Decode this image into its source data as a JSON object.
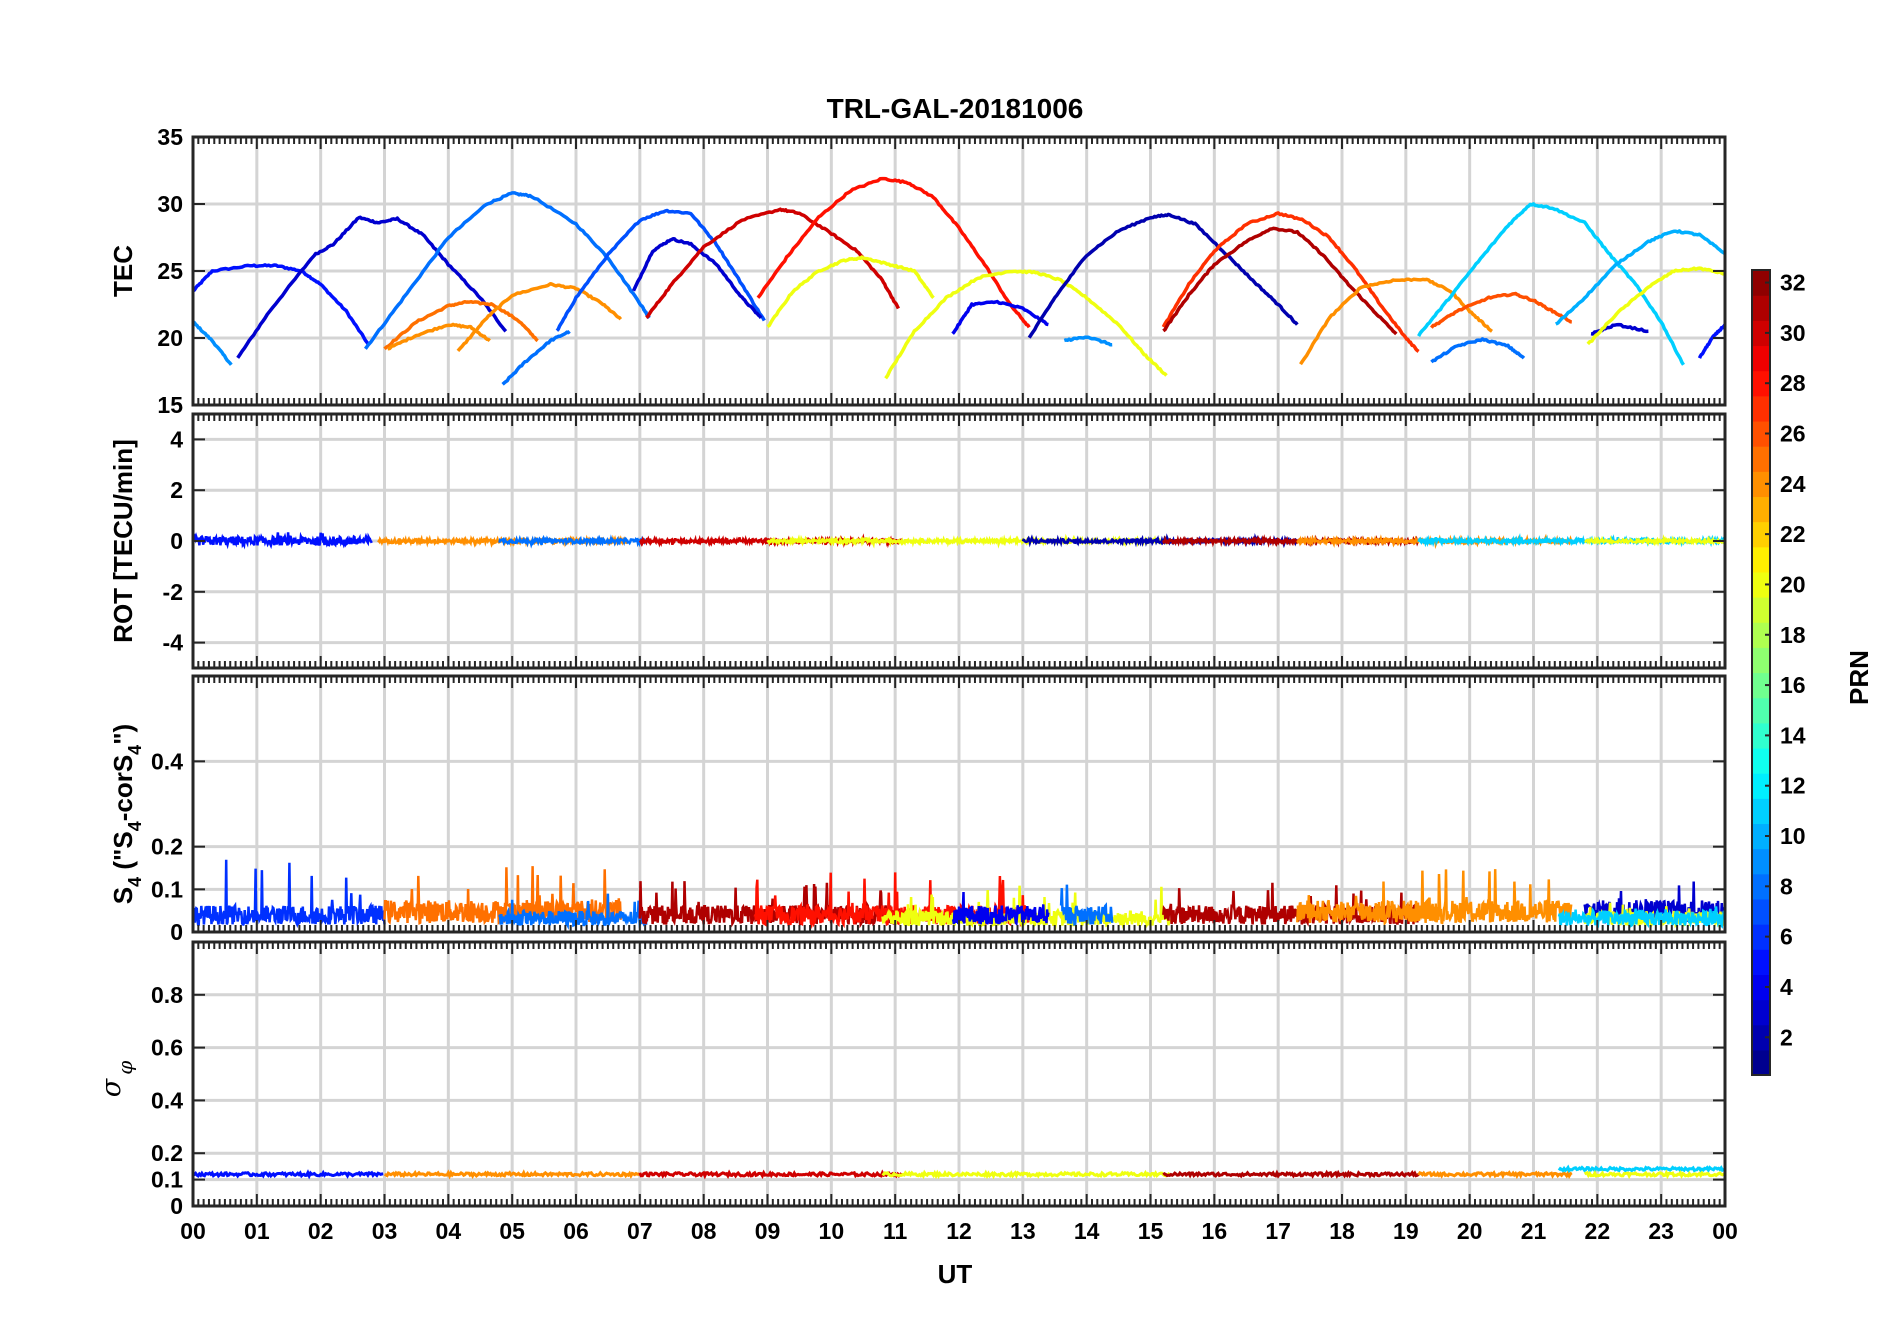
{
  "chart_data": {
    "type": "line",
    "title": "TRL-GAL-20181006",
    "xlabel": "UT",
    "x_ticks": [
      "00",
      "01",
      "02",
      "03",
      "04",
      "05",
      "06",
      "07",
      "08",
      "09",
      "10",
      "11",
      "12",
      "13",
      "14",
      "15",
      "16",
      "17",
      "18",
      "19",
      "20",
      "21",
      "22",
      "23",
      "00"
    ],
    "x_range_hours": [
      0,
      24
    ],
    "grid": true,
    "panels": [
      {
        "id": "tec",
        "ylabel": "TEC",
        "ylim": [
          15,
          35
        ],
        "yticks": [
          15,
          20,
          25,
          30,
          35
        ],
        "series": [
          {
            "prn": 5,
            "x": [
              0.0,
              0.3,
              0.9,
              1.3,
              1.7,
              2.0,
              2.4,
              2.75
            ],
            "y": [
              23.5,
              25.0,
              25.4,
              25.4,
              25.0,
              24.0,
              22.0,
              19.5
            ]
          },
          {
            "prn": 9,
            "x": [
              0.0,
              0.3,
              0.6
            ],
            "y": [
              21.2,
              19.8,
              18.0
            ]
          },
          {
            "prn": 3,
            "x": [
              0.7,
              1.2,
              1.9,
              2.2,
              2.6,
              2.9,
              3.2,
              3.6,
              4.0,
              4.5,
              4.9
            ],
            "y": [
              18.5,
              22.0,
              26.2,
              27.0,
              29.0,
              28.6,
              28.9,
              27.7,
              25.5,
              23.0,
              20.5
            ]
          },
          {
            "prn": 8,
            "x": [
              2.7,
              3.3,
              4.0,
              4.6,
              5.0,
              5.3,
              6.0,
              6.5,
              7.0,
              7.15
            ],
            "y": [
              19.2,
              23.0,
              27.5,
              30.0,
              30.8,
              30.6,
              28.5,
              26.0,
              22.6,
              21.5
            ]
          },
          {
            "prn": 25,
            "x": [
              3.0,
              3.5,
              4.0,
              4.3,
              4.7,
              5.1,
              5.4
            ],
            "y": [
              19.2,
              21.2,
              22.4,
              22.7,
              22.5,
              21.3,
              19.8
            ]
          },
          {
            "prn": 24,
            "x": [
              3.05,
              3.5,
              4.0,
              4.35,
              4.65
            ],
            "y": [
              19.2,
              20.2,
              21.0,
              20.8,
              19.8
            ]
          },
          {
            "prn": 24,
            "x": [
              4.15,
              4.6,
              5.0,
              5.6,
              6.0,
              6.4,
              6.7
            ],
            "y": [
              19.0,
              21.5,
              23.2,
              24.0,
              23.7,
              22.6,
              21.4
            ]
          },
          {
            "prn": 8,
            "x": [
              4.85,
              5.2,
              5.6,
              5.9
            ],
            "y": [
              16.5,
              18.2,
              19.8,
              20.5
            ]
          },
          {
            "prn": 7,
            "x": [
              5.7,
              6.0,
              6.5,
              7.0,
              7.4,
              7.8,
              8.2,
              8.6,
              8.95
            ],
            "y": [
              20.5,
              23.0,
              26.2,
              28.8,
              29.5,
              29.3,
              27.0,
              24.0,
              21.3
            ]
          },
          {
            "prn": 3,
            "x": [
              6.9,
              7.2,
              7.5,
              7.8,
              8.2,
              8.6,
              8.9
            ],
            "y": [
              23.5,
              26.5,
              27.4,
              27.0,
              25.5,
              23.0,
              21.5
            ]
          },
          {
            "prn": 30,
            "x": [
              7.1,
              7.5,
              8.0,
              8.6,
              9.2,
              9.5,
              10.0,
              10.4,
              10.8,
              11.05
            ],
            "y": [
              21.5,
              24.0,
              26.8,
              28.8,
              29.6,
              29.3,
              27.8,
              26.5,
              24.3,
              22.2
            ]
          },
          {
            "prn": 28,
            "x": [
              8.85,
              9.3,
              9.8,
              10.3,
              10.8,
              11.2,
              11.6,
              12.0,
              12.4,
              12.8,
              13.1
            ],
            "y": [
              23.0,
              26.0,
              29.0,
              31.0,
              31.9,
              31.6,
              30.5,
              28.2,
              25.5,
              22.5,
              20.8
            ]
          },
          {
            "prn": 20,
            "x": [
              9.0,
              9.4,
              9.8,
              10.2,
              10.5,
              10.9,
              11.3,
              11.6
            ],
            "y": [
              20.8,
              23.5,
              25.0,
              25.8,
              26.0,
              25.5,
              25.0,
              23.0
            ]
          },
          {
            "prn": 20,
            "x": [
              10.85,
              11.3,
              11.8,
              12.3,
              12.8,
              13.2,
              13.6,
              14.0,
              14.5,
              14.9,
              15.25
            ],
            "y": [
              17.0,
              20.5,
              23.0,
              24.5,
              25.0,
              24.9,
              24.3,
              23.0,
              21.0,
              18.8,
              17.2
            ]
          },
          {
            "prn": 4,
            "x": [
              11.9,
              12.2,
              12.6,
              13.0,
              13.4
            ],
            "y": [
              20.3,
              22.5,
              22.7,
              22.2,
              21.0
            ]
          },
          {
            "prn": 9,
            "x": [
              13.65,
              14.0,
              14.4
            ],
            "y": [
              19.8,
              20.1,
              19.5
            ]
          },
          {
            "prn": 2,
            "x": [
              13.1,
              13.5,
              14.0,
              14.5,
              15.0,
              15.3,
              15.7,
              16.2,
              16.6,
              17.0,
              17.3
            ],
            "y": [
              20.0,
              23.0,
              26.2,
              28.0,
              29.0,
              29.2,
              28.5,
              26.2,
              24.3,
              22.5,
              21.0
            ]
          },
          {
            "prn": 27,
            "x": [
              15.2,
              15.6,
              16.0,
              16.5,
              17.0,
              17.4,
              17.8,
              18.2,
              18.6,
              19.0,
              19.2
            ],
            "y": [
              20.8,
              24.0,
              26.5,
              28.5,
              29.3,
              28.8,
              27.5,
              25.2,
              22.5,
              20.0,
              19.0
            ]
          },
          {
            "prn": 31,
            "x": [
              15.2,
              15.6,
              16.0,
              16.5,
              16.9,
              17.3,
              17.7,
              18.1,
              18.5,
              18.85
            ],
            "y": [
              20.5,
              23.2,
              25.5,
              27.2,
              28.2,
              27.9,
              26.2,
              24.0,
              22.0,
              20.3
            ]
          },
          {
            "prn": 24,
            "x": [
              17.35,
              17.8,
              18.3,
              18.8,
              19.3,
              19.7,
              20.0,
              20.35
            ],
            "y": [
              18.0,
              21.5,
              23.8,
              24.3,
              24.4,
              23.5,
              22.0,
              20.5
            ]
          },
          {
            "prn": 11,
            "x": [
              19.2,
              19.6,
              20.1,
              20.6,
              20.95,
              21.3,
              21.8,
              22.2,
              22.6,
              23.0,
              23.35
            ],
            "y": [
              20.2,
              22.5,
              25.5,
              28.4,
              30.0,
              29.7,
              28.6,
              26.2,
              24.0,
              21.2,
              18.0
            ]
          },
          {
            "prn": 26,
            "x": [
              19.4,
              19.8,
              20.3,
              20.7,
              21.0,
              21.3,
              21.6
            ],
            "y": [
              20.8,
              22.0,
              23.0,
              23.3,
              22.8,
              22.0,
              21.2
            ]
          },
          {
            "prn": 8,
            "x": [
              19.4,
              19.8,
              20.2,
              20.6,
              20.85
            ],
            "y": [
              18.2,
              19.4,
              19.9,
              19.4,
              18.5
            ]
          },
          {
            "prn": 10,
            "x": [
              21.35,
              21.8,
              22.3,
              22.8,
              23.2,
              23.6,
              24.0
            ],
            "y": [
              21.0,
              23.0,
              25.5,
              27.2,
              28.0,
              27.7,
              26.3
            ]
          },
          {
            "prn": 3,
            "x": [
              21.9,
              22.3,
              22.8
            ],
            "y": [
              20.3,
              21.0,
              20.5
            ]
          },
          {
            "prn": 20,
            "x": [
              21.85,
              22.3,
              22.8,
              23.2,
              23.6,
              24.0
            ],
            "y": [
              19.5,
              21.8,
              23.8,
              25.0,
              25.2,
              24.8
            ]
          },
          {
            "prn": 5,
            "x": [
              23.6,
              23.8,
              24.0
            ],
            "y": [
              18.5,
              20.0,
              21.0
            ]
          }
        ]
      },
      {
        "id": "rot",
        "ylabel": "ROT [TECU/min]",
        "ylim": [
          -5,
          5
        ],
        "yticks": [
          -4,
          -2,
          0,
          2,
          4
        ],
        "series_note": "near-zero noise traces for each satellite pass",
        "series": [
          {
            "prn": 5,
            "range": [
              0.0,
              2.8
            ],
            "amp": 0.18
          },
          {
            "prn": 24,
            "range": [
              2.9,
              6.8
            ],
            "amp": 0.08
          },
          {
            "prn": 8,
            "range": [
              4.8,
              7.1
            ],
            "amp": 0.08
          },
          {
            "prn": 30,
            "range": [
              7.0,
              11.1
            ],
            "amp": 0.08
          },
          {
            "prn": 20,
            "range": [
              9.0,
              15.3
            ],
            "amp": 0.07
          },
          {
            "prn": 2,
            "range": [
              13.0,
              17.3
            ],
            "amp": 0.07
          },
          {
            "prn": 31,
            "range": [
              15.2,
              19.2
            ],
            "amp": 0.08
          },
          {
            "prn": 24,
            "range": [
              17.3,
              21.6
            ],
            "amp": 0.08
          },
          {
            "prn": 11,
            "range": [
              19.2,
              24.0
            ],
            "amp": 0.08
          },
          {
            "prn": 20,
            "range": [
              21.8,
              24.0
            ],
            "amp": 0.06
          }
        ]
      },
      {
        "id": "s4",
        "ylabel_main": "S",
        "ylabel_sub1": "4",
        "ylabel_mid": " (\"S",
        "ylabel_sub2": "4",
        "ylabel_mid2": "-corS",
        "ylabel_sub3": "4",
        "ylabel_end": "\")",
        "ylim": [
          0,
          0.6
        ],
        "yticks": [
          0,
          0.1,
          0.2,
          0.4
        ],
        "series_note": "scintillation index noise, baseline ~0.03-0.07 with spikes to ~0.17",
        "series": [
          {
            "prn": 6,
            "range": [
              0.0,
              3.0
            ],
            "base": 0.05,
            "peak": 0.17
          },
          {
            "prn": 25,
            "range": [
              3.0,
              6.7
            ],
            "base": 0.06,
            "peak": 0.16
          },
          {
            "prn": 8,
            "range": [
              4.8,
              7.1
            ],
            "base": 0.04,
            "peak": 0.09
          },
          {
            "prn": 31,
            "range": [
              7.0,
              11.1
            ],
            "base": 0.05,
            "peak": 0.12
          },
          {
            "prn": 28,
            "range": [
              8.8,
              13.1
            ],
            "base": 0.05,
            "peak": 0.14
          },
          {
            "prn": 20,
            "range": [
              10.8,
              15.3
            ],
            "base": 0.04,
            "peak": 0.11
          },
          {
            "prn": 4,
            "range": [
              11.9,
              13.4
            ],
            "base": 0.05,
            "peak": 0.1
          },
          {
            "prn": 8,
            "range": [
              13.6,
              14.4
            ],
            "base": 0.05,
            "peak": 0.14
          },
          {
            "prn": 31,
            "range": [
              15.2,
              19.2
            ],
            "base": 0.05,
            "peak": 0.12
          },
          {
            "prn": 24,
            "range": [
              17.3,
              21.6
            ],
            "base": 0.06,
            "peak": 0.15
          },
          {
            "prn": 3,
            "range": [
              21.8,
              24.0
            ],
            "base": 0.06,
            "peak": 0.12
          },
          {
            "prn": 20,
            "range": [
              21.8,
              24.0
            ],
            "base": 0.04,
            "peak": 0.07
          },
          {
            "prn": 11,
            "range": [
              21.4,
              24.0
            ],
            "base": 0.04,
            "peak": 0.06
          }
        ]
      },
      {
        "id": "sigma",
        "ylabel": "σ",
        "ylabel_sub": "φ",
        "ylim": [
          0,
          1.0
        ],
        "yticks": [
          0,
          0.1,
          0.2,
          0.4,
          0.6,
          0.8
        ],
        "series_note": "phase scintillation nearly flat ~0.12",
        "series": [
          {
            "prn": 5,
            "range": [
              0.0,
              3.0
            ],
            "base": 0.12
          },
          {
            "prn": 24,
            "range": [
              3.0,
              7.0
            ],
            "base": 0.12
          },
          {
            "prn": 30,
            "range": [
              7.0,
              11.1
            ],
            "base": 0.12
          },
          {
            "prn": 20,
            "range": [
              10.8,
              15.3
            ],
            "base": 0.12
          },
          {
            "prn": 31,
            "range": [
              15.2,
              19.2
            ],
            "base": 0.12
          },
          {
            "prn": 24,
            "range": [
              19.2,
              21.6
            ],
            "base": 0.12
          },
          {
            "prn": 11,
            "range": [
              21.4,
              24.0
            ],
            "base": 0.14
          },
          {
            "prn": 20,
            "range": [
              21.8,
              24.0
            ],
            "base": 0.12
          }
        ]
      }
    ],
    "colorbar": {
      "label": "PRN",
      "range": [
        1,
        32
      ],
      "colormap": "jet",
      "ticks": [
        2,
        4,
        6,
        8,
        10,
        12,
        14,
        16,
        18,
        20,
        22,
        24,
        26,
        28,
        30,
        32
      ]
    }
  }
}
